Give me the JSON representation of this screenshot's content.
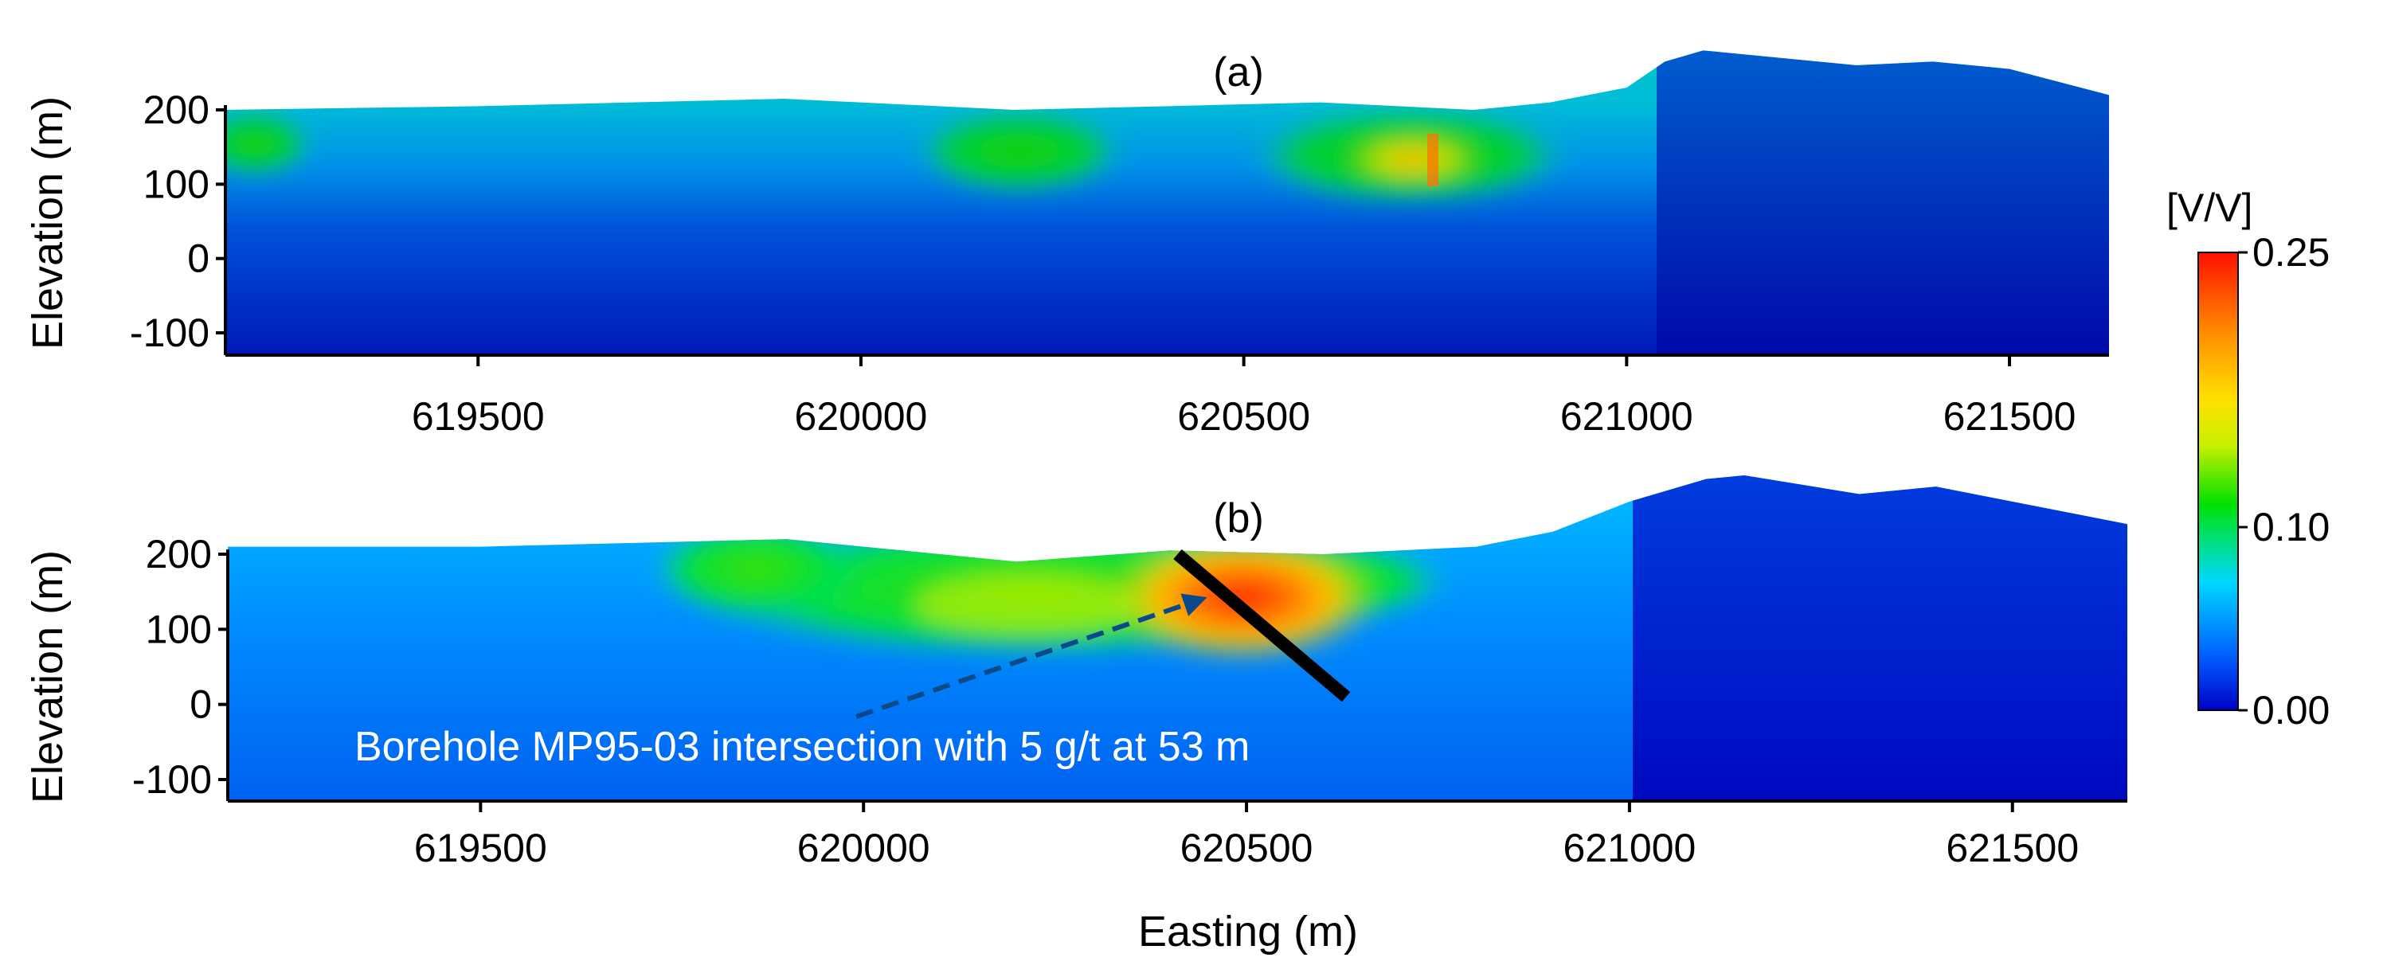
{
  "chart_data": [
    {
      "type": "heatmap",
      "panel_label": "(a)",
      "xlabel": "",
      "ylabel": "Elevation (m)",
      "xlim": [
        619170,
        621630
      ],
      "ylim": [
        -130,
        280
      ],
      "x_ticks": [
        "619500",
        "620000",
        "620500",
        "621000",
        "621500"
      ],
      "y_ticks": [
        "200",
        "100",
        "0",
        "-100"
      ],
      "topography": {
        "x": [
          619170,
          619500,
          619700,
          619900,
          620000,
          620200,
          620400,
          620600,
          620800,
          620900,
          621000,
          621050,
          621100,
          621150,
          621300,
          621400,
          621500,
          621630
        ],
        "elevation": [
          200,
          205,
          210,
          215,
          210,
          200,
          205,
          210,
          200,
          210,
          230,
          265,
          280,
          275,
          260,
          265,
          255,
          220
        ]
      },
      "anomalies": [
        {
          "x": 620250,
          "elevation": 140,
          "value": 0.1
        },
        {
          "x": 620720,
          "elevation": 130,
          "value": 0.15
        },
        {
          "x": 620745,
          "elevation": 130,
          "value": 0.2
        },
        {
          "x": 619250,
          "elevation": 145,
          "value": 0.08
        }
      ]
    },
    {
      "type": "heatmap",
      "panel_label": "(b)",
      "xlabel": "Easting (m)",
      "ylabel": "Elevation (m)",
      "xlim": [
        619170,
        621650
      ],
      "ylim": [
        -130,
        310
      ],
      "x_ticks": [
        "619500",
        "620000",
        "620500",
        "621000",
        "621500"
      ],
      "y_ticks": [
        "200",
        "100",
        "0",
        "-100"
      ],
      "topography": {
        "x": [
          619170,
          619500,
          619700,
          619900,
          620000,
          620200,
          620400,
          620600,
          620800,
          620900,
          621000,
          621100,
          621150,
          621300,
          621400,
          621500,
          621650
        ],
        "elevation": [
          210,
          210,
          215,
          220,
          210,
          190,
          205,
          200,
          210,
          230,
          270,
          300,
          305,
          280,
          290,
          270,
          240
        ]
      },
      "anomalies": [
        {
          "x": 620500,
          "elevation": 140,
          "value": 0.22
        },
        {
          "x": 620100,
          "elevation": 150,
          "value": 0.12
        },
        {
          "x": 619900,
          "elevation": 165,
          "value": 0.1
        }
      ],
      "borehole": {
        "x_top": 620410,
        "elev_top": 200,
        "x_bottom": 620630,
        "elev_bottom": 10
      },
      "annotation": "Borehole MP95-03 intersection with 5 g/t at 53 m"
    }
  ],
  "colorbar": {
    "title": "[V/V]",
    "ticks": [
      "0.25",
      "0.10",
      "0.00"
    ],
    "tick_values": [
      0.25,
      0.1,
      0.0
    ],
    "min": 0.0,
    "max": 0.25,
    "colors": [
      "#0000c8",
      "#0060ff",
      "#00d8ff",
      "#00e070",
      "#00e000",
      "#c8f000",
      "#ffe000",
      "#ff9000",
      "#ff1000"
    ]
  }
}
